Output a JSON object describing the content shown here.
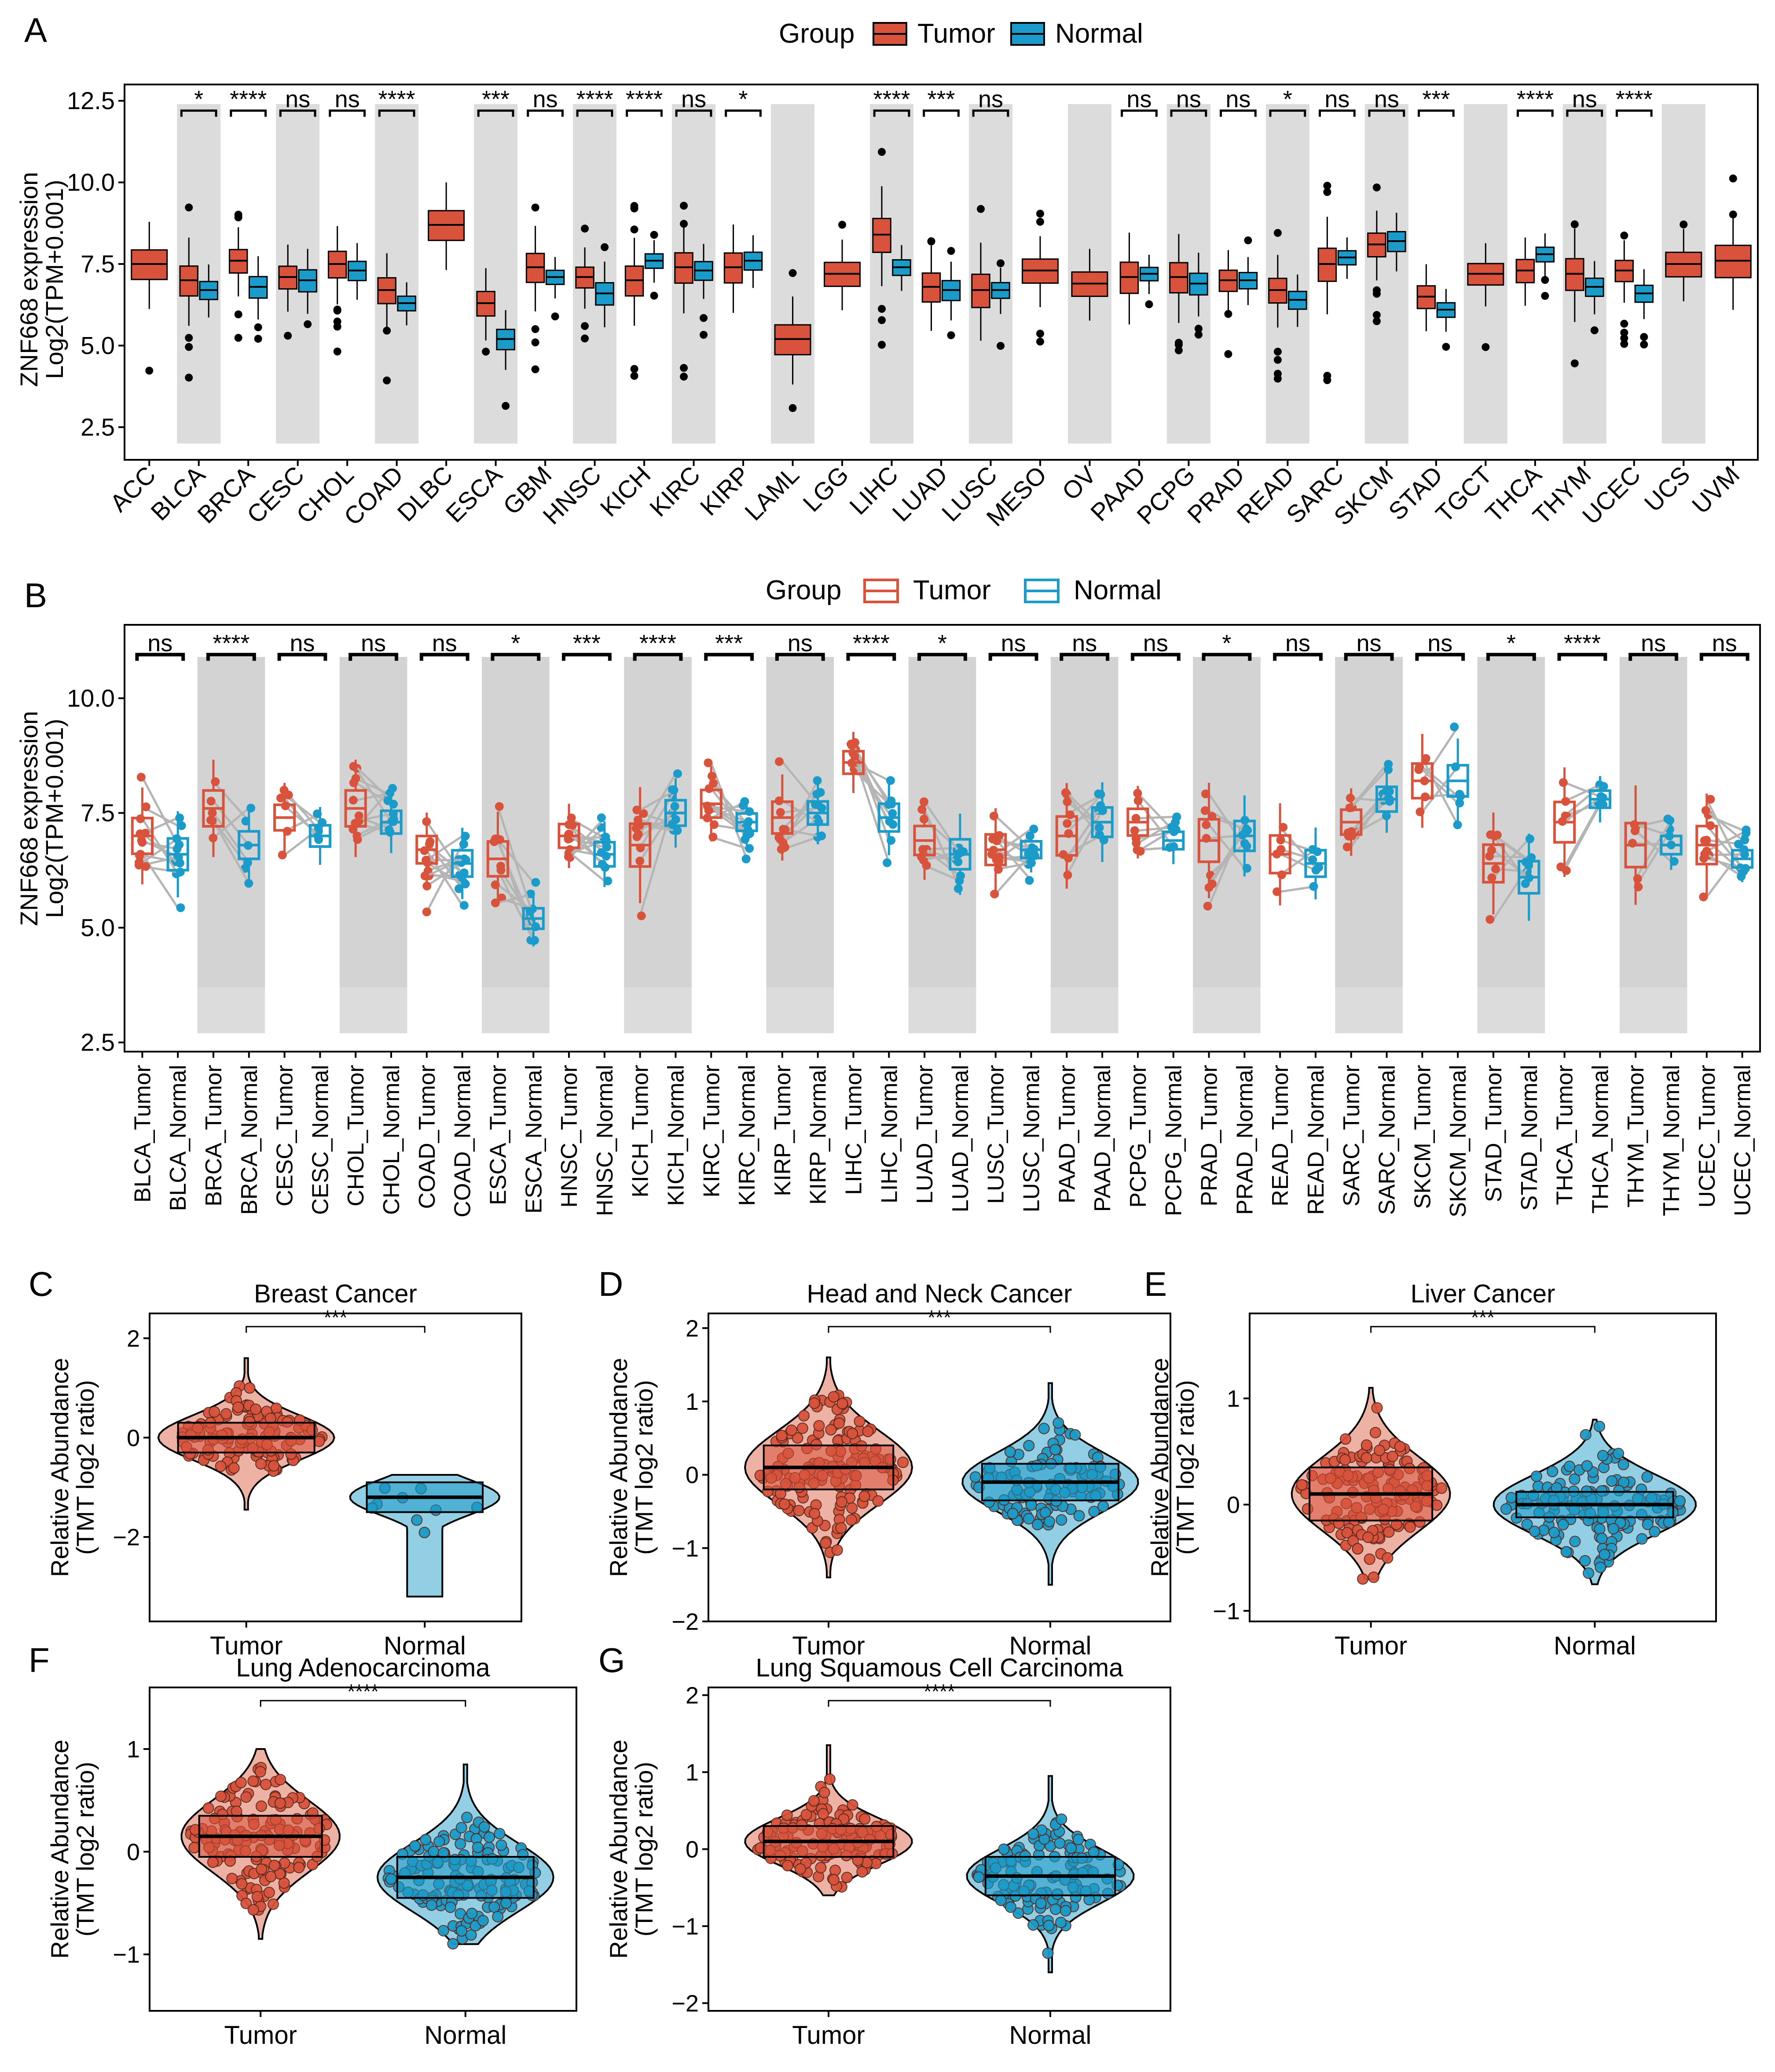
{
  "colors": {
    "tumor": "#D9533C",
    "normal": "#1B9BC9",
    "tumor_light": "#EBA595",
    "normal_light": "#7FC5DF",
    "shade": "#DCDCDC",
    "shade_dark": "#D3D3D3",
    "axis": "#000000"
  },
  "panel_a": {
    "letter": "A",
    "legend_title": "Group",
    "legend_tumor": "Tumor",
    "legend_normal": "Normal",
    "ylabel1": "ZNF668 expression",
    "ylabel2": "Log2(TPM+0.001)",
    "yticks": [
      "2.5",
      "5.0",
      "7.5",
      "10.0",
      "12.5"
    ]
  },
  "panel_b": {
    "letter": "B",
    "legend_title": "Group",
    "legend_tumor": "Tumor",
    "legend_normal": "Normal",
    "ylabel1": "ZNF668 expression",
    "ylabel2": "Log2(TPM+0.001)",
    "yticks": [
      "2.5",
      "5.0",
      "7.5",
      "10.0"
    ]
  },
  "panel_c": {
    "letter": "C",
    "title": "Breast Cancer",
    "sig": "***",
    "yticks": [
      "−2",
      "0",
      "2"
    ],
    "ylabel1": "Relative Abundance",
    "ylabel2": "(TMT log2 ratio)",
    "xtick_tumor": "Tumor",
    "xtick_normal": "Normal"
  },
  "panel_d": {
    "letter": "D",
    "title": "Head and Neck Cancer",
    "sig": "***",
    "yticks": [
      "−2",
      "−1",
      "0",
      "1",
      "2"
    ],
    "ylabel1": "Relative Abundance",
    "ylabel2": "(TMT log2 ratio)",
    "xtick_tumor": "Tumor",
    "xtick_normal": "Normal"
  },
  "panel_e": {
    "letter": "E",
    "title": "Liver Cancer",
    "sig": "***",
    "yticks": [
      "−1",
      "0",
      "1"
    ],
    "ylabel1": "Relative Abundance",
    "ylabel2": "(TMT log2 ratio)",
    "xtick_tumor": "Tumor",
    "xtick_normal": "Normal"
  },
  "panel_f": {
    "letter": "F",
    "title": "Lung Adenocarcinoma",
    "sig": "****",
    "yticks": [
      "−1",
      "0",
      "1"
    ],
    "ylabel1": "Relative Abundance",
    "ylabel2": "(TMT log2 ratio)",
    "xtick_tumor": "Tumor",
    "xtick_normal": "Normal"
  },
  "panel_g": {
    "letter": "G",
    "title": "Lung Squamous Cell Carcinoma",
    "sig": "****",
    "yticks": [
      "−2",
      "−1",
      "0",
      "1",
      "2"
    ],
    "ylabel1": "Relative Abundance",
    "ylabel2": "(TMT log2 ratio)",
    "xtick_tumor": "Tumor",
    "xtick_normal": "Normal"
  },
  "chart_data": [
    {
      "id": "A",
      "type": "box",
      "title": "",
      "ylabel": "ZNF668 expression Log2(TPM+0.001)",
      "ylim": [
        1.5,
        13.0
      ],
      "legend": [
        "Tumor",
        "Normal"
      ],
      "categories": [
        "ACC",
        "BLCA",
        "BRCA",
        "CESC",
        "CHOL",
        "COAD",
        "DLBC",
        "ESCA",
        "GBM",
        "HNSC",
        "KICH",
        "KIRC",
        "KIRP",
        "LAML",
        "LGG",
        "LIHC",
        "LUAD",
        "LUSC",
        "MESO",
        "OV",
        "PAAD",
        "PCPG",
        "PRAD",
        "READ",
        "SARC",
        "SKCM",
        "STAD",
        "TGCT",
        "THCA",
        "THYM",
        "UCEC",
        "UCS",
        "UVM"
      ],
      "tumor_median": [
        7.5,
        7.0,
        7.6,
        7.1,
        7.5,
        6.7,
        8.7,
        6.3,
        7.4,
        7.1,
        7.0,
        7.4,
        7.4,
        5.2,
        7.2,
        8.4,
        6.8,
        6.7,
        7.3,
        6.9,
        7.1,
        7.1,
        7.0,
        6.7,
        7.5,
        8.1,
        6.5,
        7.2,
        7.3,
        7.2,
        7.3,
        7.5,
        7.6
      ],
      "normal_median": [
        null,
        6.7,
        6.8,
        7.0,
        7.3,
        6.3,
        null,
        5.2,
        7.1,
        6.6,
        7.6,
        7.3,
        7.6,
        null,
        null,
        7.4,
        6.7,
        6.7,
        null,
        null,
        7.2,
        6.9,
        7.0,
        6.4,
        7.7,
        8.2,
        6.1,
        null,
        7.8,
        6.8,
        6.6,
        null,
        null
      ],
      "significance": [
        "",
        "*",
        "****",
        "ns",
        "ns",
        "****",
        "",
        "***",
        "ns",
        "****",
        "****",
        "ns",
        "*",
        "",
        "",
        "****",
        "***",
        "ns",
        "",
        "",
        "ns",
        "ns",
        "ns",
        "*",
        "ns",
        "ns",
        "***",
        "",
        "****",
        "ns",
        "****",
        "",
        ""
      ]
    },
    {
      "id": "B",
      "type": "box-paired",
      "ylabel": "ZNF668 expression Log2(TPM+0.001)",
      "ylim": [
        2.3,
        11.6
      ],
      "categories": [
        "BLCA",
        "BRCA",
        "CESC",
        "CHOL",
        "COAD",
        "ESCA",
        "HNSC",
        "KICH",
        "KIRC",
        "KIRP",
        "LIHC",
        "LUAD",
        "LUSC",
        "PAAD",
        "PCPG",
        "PRAD",
        "READ",
        "SARC",
        "SKCM",
        "STAD",
        "THCA",
        "THYM",
        "UCEC"
      ],
      "tumor_median": [
        7.0,
        7.6,
        7.4,
        7.6,
        6.7,
        6.5,
        7.0,
        6.8,
        7.7,
        7.4,
        8.6,
        6.9,
        6.7,
        7.0,
        7.3,
        6.9,
        6.6,
        7.3,
        8.2,
        6.4,
        7.3,
        6.8,
        6.8
      ],
      "normal_median": [
        6.6,
        6.8,
        7.0,
        7.3,
        6.4,
        5.2,
        6.6,
        7.5,
        7.3,
        7.5,
        7.4,
        6.6,
        6.7,
        7.3,
        6.9,
        7.0,
        6.4,
        7.8,
        8.2,
        6.1,
        7.8,
        6.8,
        6.5
      ],
      "significance": [
        "ns",
        "****",
        "ns",
        "ns",
        "ns",
        "*",
        "***",
        "****",
        "***",
        "ns",
        "****",
        "*",
        "ns",
        "ns",
        "ns",
        "*",
        "ns",
        "ns",
        "ns",
        "*",
        "****",
        "ns",
        "ns"
      ],
      "x_labels": [
        "BLCA_Tumor",
        "BLCA_Normal",
        "BRCA_Tumor",
        "BRCA_Normal",
        "CESC_Tumor",
        "CESC_Normal",
        "CHOL_Tumor",
        "CHOL_Normal",
        "COAD_Tumor",
        "COAD_Normal",
        "ESCA_Tumor",
        "ESCA_Normal",
        "HNSC_Tumor",
        "HNSC_Normal",
        "KICH_Tumor",
        "KICH_Normal",
        "KIRC_Tumor",
        "KIRC_Normal",
        "KIRP_Tumor",
        "KIRP_Normal",
        "LIHC_Tumor",
        "LIHC_Normal",
        "LUAD_Tumor",
        "LUAD_Normal",
        "LUSC_Tumor",
        "LUSC_Normal",
        "PAAD_Tumor",
        "PAAD_Normal",
        "PCPG_Tumor",
        "PCPG_Normal",
        "PRAD_Tumor",
        "PRAD_Normal",
        "READ_Tumor",
        "READ_Normal",
        "SARC_Tumor",
        "SARC_Normal",
        "SKCM_Tumor",
        "SKCM_Normal",
        "STAD_Tumor",
        "STAD_Normal",
        "THCA_Tumor",
        "THCA_Normal",
        "THYM_Tumor",
        "THYM_Normal",
        "UCEC_Tumor",
        "UCEC_Normal"
      ]
    },
    {
      "id": "C",
      "type": "violin-box",
      "title": "Breast Cancer",
      "categories": [
        "Tumor",
        "Normal"
      ],
      "ylim": [
        -3.7,
        2.5
      ],
      "tumor_median": 0.0,
      "normal_median": -1.2,
      "significance": "***"
    },
    {
      "id": "D",
      "type": "violin-box",
      "title": "Head and Neck Cancer",
      "categories": [
        "Tumor",
        "Normal"
      ],
      "ylim": [
        -2.0,
        2.2
      ],
      "tumor_median": 0.1,
      "normal_median": -0.1,
      "significance": "***"
    },
    {
      "id": "E",
      "type": "violin-box",
      "title": "Liver Cancer",
      "categories": [
        "Tumor",
        "Normal"
      ],
      "ylim": [
        -1.1,
        1.8
      ],
      "tumor_median": 0.1,
      "normal_median": 0.0,
      "significance": "***"
    },
    {
      "id": "F",
      "type": "violin-box",
      "title": "Lung Adenocarcinoma",
      "categories": [
        "Tumor",
        "Normal"
      ],
      "ylim": [
        -1.55,
        1.6
      ],
      "tumor_median": 0.15,
      "normal_median": -0.25,
      "significance": "****"
    },
    {
      "id": "G",
      "type": "violin-box",
      "title": "Lung Squamous Cell Carcinoma",
      "categories": [
        "Tumor",
        "Normal"
      ],
      "ylim": [
        -2.1,
        2.1
      ],
      "tumor_median": 0.1,
      "normal_median": -0.35,
      "significance": "****"
    }
  ]
}
